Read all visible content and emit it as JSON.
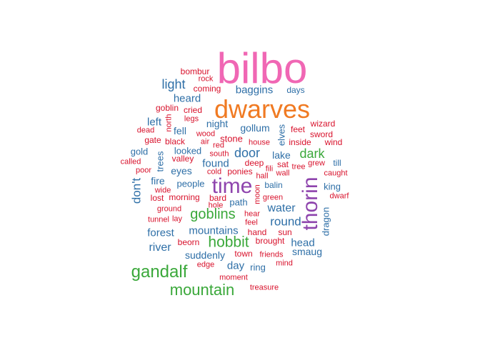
{
  "colors": {
    "pink": "#f067b4",
    "orange": "#f07a22",
    "purple": "#8e44ad",
    "green": "#3aa83a",
    "blue": "#2e6fa7",
    "red": "#d8122c"
  },
  "words": [
    {
      "text": "bilbo",
      "color": "pink"
    },
    {
      "text": "dwarves",
      "color": "orange"
    },
    {
      "text": "time",
      "color": "purple"
    },
    {
      "text": "thorin",
      "color": "purple"
    },
    {
      "text": "gandalf",
      "color": "green"
    },
    {
      "text": "mountain",
      "color": "green"
    },
    {
      "text": "hobbit",
      "color": "green"
    },
    {
      "text": "goblins",
      "color": "green"
    },
    {
      "text": "dark",
      "color": "green"
    },
    {
      "text": "don't",
      "color": "blue"
    },
    {
      "text": "light",
      "color": "blue"
    },
    {
      "text": "baggins",
      "color": "blue"
    },
    {
      "text": "heard",
      "color": "blue"
    },
    {
      "text": "door",
      "color": "blue"
    },
    {
      "text": "round",
      "color": "blue"
    },
    {
      "text": "water",
      "color": "blue"
    },
    {
      "text": "river",
      "color": "blue"
    },
    {
      "text": "forest",
      "color": "blue"
    },
    {
      "text": "mountains",
      "color": "blue"
    },
    {
      "text": "night",
      "color": "blue"
    },
    {
      "text": "gollum",
      "color": "blue"
    },
    {
      "text": "left",
      "color": "blue"
    },
    {
      "text": "fell",
      "color": "blue"
    },
    {
      "text": "found",
      "color": "blue"
    },
    {
      "text": "head",
      "color": "blue"
    },
    {
      "text": "smaug",
      "color": "blue"
    },
    {
      "text": "suddenly",
      "color": "blue"
    },
    {
      "text": "day",
      "color": "blue"
    },
    {
      "text": "fire",
      "color": "blue"
    },
    {
      "text": "eyes",
      "color": "blue"
    },
    {
      "text": "people",
      "color": "blue"
    },
    {
      "text": "king",
      "color": "blue"
    },
    {
      "text": "dragon",
      "color": "blue"
    },
    {
      "text": "elves",
      "color": "blue"
    },
    {
      "text": "trees",
      "color": "blue"
    },
    {
      "text": "lake",
      "color": "blue"
    },
    {
      "text": "looked",
      "color": "blue"
    },
    {
      "text": "path",
      "color": "blue"
    },
    {
      "text": "ring",
      "color": "blue"
    },
    {
      "text": "gold",
      "color": "blue"
    },
    {
      "text": "balin",
      "color": "blue"
    },
    {
      "text": "till",
      "color": "blue"
    },
    {
      "text": "days",
      "color": "blue"
    },
    {
      "text": "bombur",
      "color": "red"
    },
    {
      "text": "rock",
      "color": "red"
    },
    {
      "text": "coming",
      "color": "red"
    },
    {
      "text": "goblin",
      "color": "red"
    },
    {
      "text": "cried",
      "color": "red"
    },
    {
      "text": "legs",
      "color": "red"
    },
    {
      "text": "north",
      "color": "red"
    },
    {
      "text": "dead",
      "color": "red"
    },
    {
      "text": "gate",
      "color": "red"
    },
    {
      "text": "black",
      "color": "red"
    },
    {
      "text": "wood",
      "color": "red"
    },
    {
      "text": "air",
      "color": "red"
    },
    {
      "text": "red",
      "color": "red"
    },
    {
      "text": "stone",
      "color": "red"
    },
    {
      "text": "feet",
      "color": "red"
    },
    {
      "text": "wizard",
      "color": "red"
    },
    {
      "text": "sword",
      "color": "red"
    },
    {
      "text": "wind",
      "color": "red"
    },
    {
      "text": "inside",
      "color": "red"
    },
    {
      "text": "house",
      "color": "red"
    },
    {
      "text": "south",
      "color": "red"
    },
    {
      "text": "valley",
      "color": "red"
    },
    {
      "text": "called",
      "color": "red"
    },
    {
      "text": "poor",
      "color": "red"
    },
    {
      "text": "cold",
      "color": "red"
    },
    {
      "text": "ponies",
      "color": "red"
    },
    {
      "text": "deep",
      "color": "red"
    },
    {
      "text": "sat",
      "color": "red"
    },
    {
      "text": "tree",
      "color": "red"
    },
    {
      "text": "grew",
      "color": "red"
    },
    {
      "text": "fili",
      "color": "red"
    },
    {
      "text": "hall",
      "color": "red"
    },
    {
      "text": "wall",
      "color": "red"
    },
    {
      "text": "caught",
      "color": "red"
    },
    {
      "text": "wide",
      "color": "red"
    },
    {
      "text": "lost",
      "color": "red"
    },
    {
      "text": "morning",
      "color": "red"
    },
    {
      "text": "bard",
      "color": "red"
    },
    {
      "text": "moon",
      "color": "red"
    },
    {
      "text": "green",
      "color": "red"
    },
    {
      "text": "hole",
      "color": "red"
    },
    {
      "text": "dwarf",
      "color": "red"
    },
    {
      "text": "ground",
      "color": "red"
    },
    {
      "text": "tunnel",
      "color": "red"
    },
    {
      "text": "lay",
      "color": "red"
    },
    {
      "text": "hear",
      "color": "red"
    },
    {
      "text": "feel",
      "color": "red"
    },
    {
      "text": "hand",
      "color": "red"
    },
    {
      "text": "sun",
      "color": "red"
    },
    {
      "text": "beorn",
      "color": "red"
    },
    {
      "text": "brought",
      "color": "red"
    },
    {
      "text": "town",
      "color": "red"
    },
    {
      "text": "friends",
      "color": "red"
    },
    {
      "text": "edge",
      "color": "red"
    },
    {
      "text": "mind",
      "color": "red"
    },
    {
      "text": "moment",
      "color": "red"
    },
    {
      "text": "treasure",
      "color": "red"
    }
  ]
}
